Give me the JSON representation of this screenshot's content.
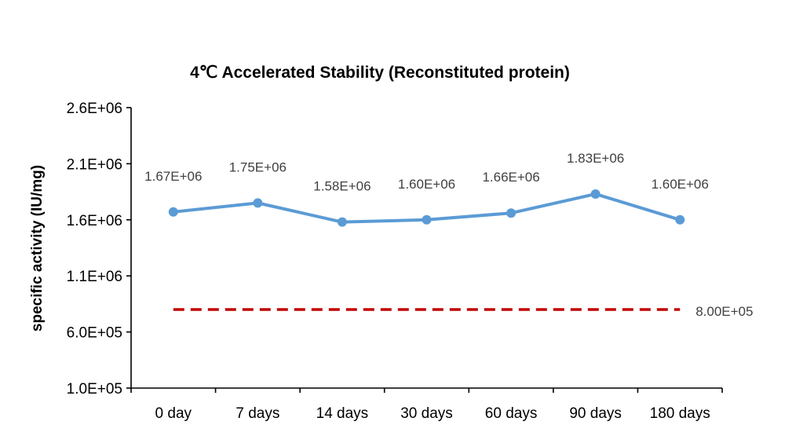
{
  "chart_data": {
    "type": "line",
    "title": "4℃ Accelerated  Stability (Reconstituted protein)",
    "xlabel": "",
    "ylabel": "specific activity (IU/mg)",
    "ylim": [
      100000,
      2600000
    ],
    "yticks": [
      {
        "value": 100000,
        "label": "1.0E+05"
      },
      {
        "value": 600000,
        "label": "6.0E+05"
      },
      {
        "value": 1100000,
        "label": "1.1E+06"
      },
      {
        "value": 1600000,
        "label": "1.6E+06"
      },
      {
        "value": 2100000,
        "label": "2.1E+06"
      },
      {
        "value": 2600000,
        "label": "2.6E+06"
      }
    ],
    "categories": [
      "0 day",
      "7 days",
      "14 days",
      "30 days",
      "60 days",
      "90 days",
      "180 days"
    ],
    "series": [
      {
        "color": "#5b9bd5",
        "values": [
          1670000,
          1750000,
          1580000,
          1600000,
          1660000,
          1830000,
          1600000
        ],
        "labels": [
          "1.67E+06",
          "1.75E+06",
          "1.58E+06",
          "1.60E+06",
          "1.66E+06",
          "1.83E+06",
          "1.60E+06"
        ]
      }
    ],
    "reference_line": {
      "value": 800000,
      "label": "8.00E+05",
      "color": "#c00000",
      "style": "dashed"
    },
    "grid": false,
    "legend": "none"
  }
}
